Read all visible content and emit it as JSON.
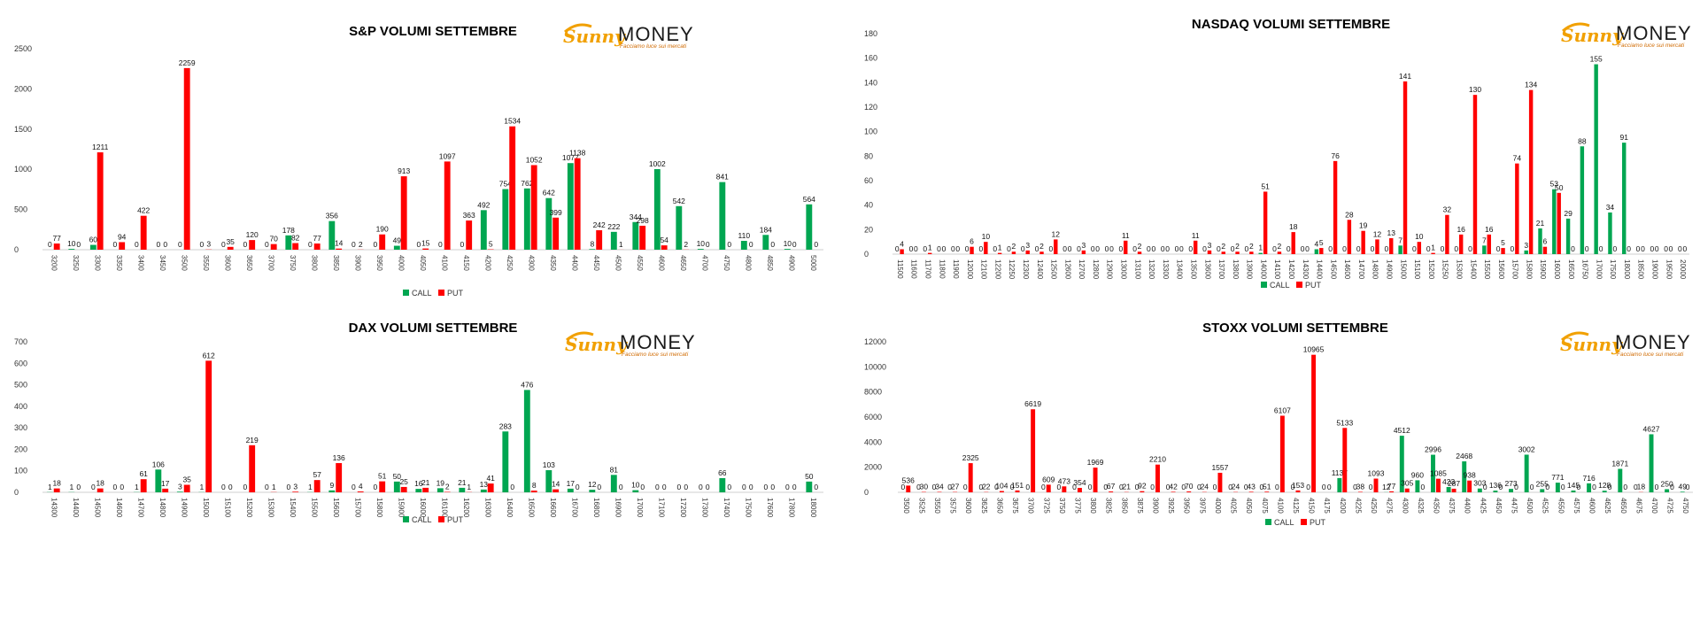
{
  "logo": {
    "brand_left": "Sunny",
    "brand_right": "MONEY",
    "tagline": "Facciamo luce sui mercati",
    "colors": {
      "sunny": "#f1a000",
      "money": "#1a1a1a"
    }
  },
  "colors": {
    "call": "#00a651",
    "put": "#ff0000"
  },
  "legend": {
    "call": "CALL",
    "put": "PUT"
  },
  "chart_data": [
    {
      "id": "sp",
      "type": "bar",
      "title": "S&P VOLUMI SETTEMBRE",
      "ylim": [
        0,
        2500
      ],
      "yticks": [
        0,
        500,
        1000,
        1500,
        2000,
        2500
      ],
      "grid": false,
      "legend_position": "bottom-center",
      "categories": [
        "3200",
        "3250",
        "3300",
        "3350",
        "3400",
        "3450",
        "3500",
        "3550",
        "3600",
        "3650",
        "3700",
        "3750",
        "3800",
        "3850",
        "3900",
        "3950",
        "4000",
        "4050",
        "4100",
        "4150",
        "4200",
        "4250",
        "4300",
        "4350",
        "4400",
        "4450",
        "4500",
        "4550",
        "4600",
        "4650",
        "4700",
        "4750",
        "4800",
        "4850",
        "4900",
        "5000"
      ],
      "series": [
        {
          "name": "CALL",
          "values": [
            0,
            10,
            60,
            0,
            0,
            0,
            0,
            0,
            0,
            0,
            0,
            178,
            0,
            356,
            0,
            0,
            49,
            0,
            0,
            0,
            492,
            754,
            762,
            642,
            1077,
            8,
            222,
            344,
            1002,
            542,
            10,
            841,
            110,
            184,
            10,
            564
          ]
        },
        {
          "name": "PUT",
          "values": [
            77,
            0,
            1211,
            94,
            422,
            0,
            2259,
            3,
            35,
            120,
            70,
            82,
            77,
            14,
            2,
            190,
            913,
            15,
            1097,
            363,
            5,
            1534,
            1052,
            399,
            1138,
            242,
            1,
            298,
            54,
            2,
            0,
            0,
            0,
            0,
            0,
            0
          ]
        }
      ]
    },
    {
      "id": "nasdaq",
      "type": "bar",
      "title": "NASDAQ VOLUMI SETTEMBRE",
      "ylim": [
        0,
        180
      ],
      "yticks": [
        0,
        20,
        40,
        60,
        80,
        100,
        120,
        140,
        160,
        180
      ],
      "grid": false,
      "legend_position": "bottom-center",
      "categories": [
        "11500",
        "11600",
        "11700",
        "11800",
        "11900",
        "12000",
        "12100",
        "12200",
        "12250",
        "12300",
        "12400",
        "12500",
        "12600",
        "12700",
        "12800",
        "12900",
        "13000",
        "13100",
        "13200",
        "13300",
        "13400",
        "13500",
        "13600",
        "13700",
        "13800",
        "13900",
        "14000",
        "14100",
        "14200",
        "14300",
        "14400",
        "14500",
        "14600",
        "14700",
        "14800",
        "14900",
        "15000",
        "15100",
        "15200",
        "15250",
        "15300",
        "15400",
        "15500",
        "15600",
        "15700",
        "15800",
        "15900",
        "16000",
        "16500",
        "16750",
        "17000",
        "17500",
        "18000",
        "18500",
        "19000",
        "19500",
        "20000"
      ],
      "series": [
        {
          "name": "CALL",
          "values": [
            0,
            0,
            0,
            0,
            0,
            0,
            0,
            0,
            0,
            0,
            0,
            0,
            0,
            0,
            0,
            0,
            0,
            0,
            0,
            0,
            0,
            0,
            0,
            0,
            0,
            0,
            1,
            0,
            0,
            0,
            4,
            0,
            0,
            0,
            0,
            0,
            7,
            0,
            0,
            0,
            0,
            0,
            7,
            0,
            0,
            3,
            21,
            53,
            29,
            88,
            155,
            34,
            91,
            0,
            0,
            0,
            0
          ]
        },
        {
          "name": "PUT",
          "values": [
            4,
            0,
            1,
            0,
            0,
            6,
            10,
            1,
            2,
            3,
            2,
            12,
            0,
            3,
            0,
            0,
            11,
            2,
            0,
            0,
            0,
            11,
            3,
            2,
            2,
            2,
            51,
            2,
            18,
            0,
            5,
            76,
            28,
            19,
            12,
            13,
            141,
            10,
            1,
            32,
            16,
            130,
            16,
            5,
            74,
            134,
            6,
            50,
            0,
            0,
            0,
            0,
            0,
            0,
            0,
            0,
            0
          ]
        }
      ]
    },
    {
      "id": "dax",
      "type": "bar",
      "title": "DAX VOLUMI SETTEMBRE",
      "ylim": [
        0,
        700
      ],
      "yticks": [
        0,
        100,
        200,
        300,
        400,
        500,
        600,
        700
      ],
      "grid": false,
      "legend_position": "bottom-center",
      "categories": [
        "14300",
        "14400",
        "14500",
        "14600",
        "14700",
        "14800",
        "14900",
        "15000",
        "15100",
        "15200",
        "15300",
        "15400",
        "15500",
        "15600",
        "15700",
        "15800",
        "15900",
        "16000",
        "16100",
        "16200",
        "16300",
        "16400",
        "16500",
        "16600",
        "16700",
        "16800",
        "16900",
        "17000",
        "17100",
        "17200",
        "17300",
        "17400",
        "17500",
        "17600",
        "17800",
        "18000"
      ],
      "series": [
        {
          "name": "CALL",
          "values": [
            1,
            1,
            0,
            0,
            1,
            106,
            3,
            1,
            0,
            0,
            0,
            0,
            1,
            9,
            0,
            0,
            50,
            16,
            19,
            21,
            13,
            283,
            476,
            103,
            17,
            12,
            81,
            10,
            0,
            0,
            0,
            66,
            0,
            0,
            0,
            50
          ]
        },
        {
          "name": "PUT",
          "values": [
            18,
            0,
            18,
            0,
            61,
            17,
            35,
            612,
            0,
            219,
            1,
            3,
            57,
            136,
            4,
            51,
            25,
            21,
            2,
            1,
            41,
            0,
            8,
            14,
            0,
            0,
            0,
            0,
            0,
            0,
            0,
            0,
            0,
            0,
            0,
            0
          ]
        }
      ]
    },
    {
      "id": "stoxx",
      "type": "bar",
      "title": "STOXX VOLUMI SETTEMBRE",
      "ylim": [
        0,
        12000
      ],
      "yticks": [
        0,
        2000,
        4000,
        6000,
        8000,
        10000,
        12000
      ],
      "grid": false,
      "legend_position": "bottom-center",
      "categories": [
        "3500",
        "3525",
        "3550",
        "3575",
        "3600",
        "3625",
        "3650",
        "3675",
        "3700",
        "3725",
        "3750",
        "3775",
        "3800",
        "3825",
        "3850",
        "3875",
        "3900",
        "3925",
        "3950",
        "3975",
        "4000",
        "4025",
        "4050",
        "4075",
        "4100",
        "4125",
        "4150",
        "4175",
        "4200",
        "4225",
        "4250",
        "4275",
        "4300",
        "4325",
        "4350",
        "4375",
        "4400",
        "4425",
        "4450",
        "4475",
        "4500",
        "4525",
        "4550",
        "4575",
        "4600",
        "4625",
        "4650",
        "4675",
        "4700",
        "4725",
        "4750"
      ],
      "series": [
        {
          "name": "CALL",
          "values": [
            0,
            0,
            0,
            0,
            0,
            0,
            0,
            0,
            0,
            0,
            0,
            0,
            0,
            0,
            0,
            0,
            0,
            0,
            0,
            0,
            0,
            0,
            0,
            0,
            0,
            0,
            0,
            0,
            1137,
            0,
            0,
            12,
            4512,
            960,
            2996,
            423,
            2468,
            303,
            136,
            273,
            3002,
            255,
            771,
            145,
            716,
            128,
            1871,
            0,
            4627,
            250,
            49
          ]
        },
        {
          "name": "PUT",
          "values": [
            536,
            30,
            34,
            27,
            2325,
            22,
            104,
            151,
            6619,
            609,
            473,
            354,
            1969,
            67,
            21,
            92,
            2210,
            42,
            70,
            24,
            1557,
            24,
            43,
            51,
            6107,
            153,
            10965,
            0,
            5133,
            38,
            1093,
            77,
            305,
            0,
            1085,
            287,
            938,
            0,
            0,
            0,
            0,
            0,
            0,
            0,
            0,
            0,
            0,
            18,
            0,
            0,
            0
          ]
        }
      ]
    }
  ]
}
